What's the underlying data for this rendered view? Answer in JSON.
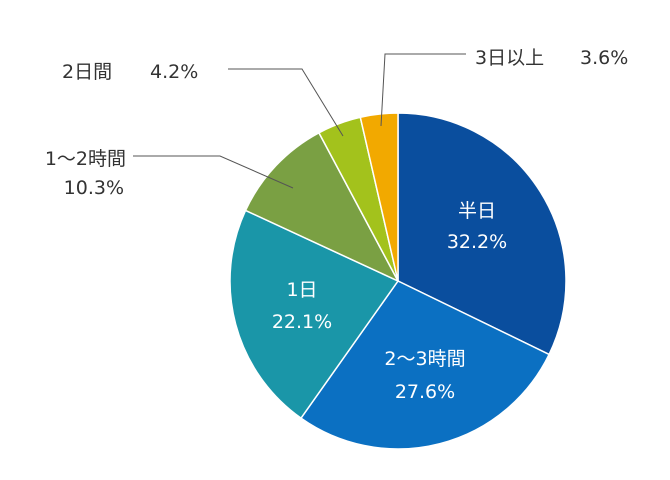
{
  "chart_data": {
    "type": "pie",
    "start": "12 o'clock",
    "direction": "clockwise",
    "slices": [
      {
        "label": "半日",
        "value": 32.2,
        "value_text": "32.2%",
        "color": "#0a4e9e",
        "label_placement": "inside"
      },
      {
        "label": "2～3時間",
        "value": 27.6,
        "value_text": "27.6%",
        "color": "#0b70c2",
        "label_placement": "inside"
      },
      {
        "label": "1日",
        "value": 22.1,
        "value_text": "22.1%",
        "color": "#1a96a8",
        "label_placement": "inside"
      },
      {
        "label": "1～2時間",
        "value": 10.3,
        "value_text": "10.3%",
        "color": "#7aa043",
        "label_placement": "outside"
      },
      {
        "label": "2日間",
        "value": 4.2,
        "value_text": "4.2%",
        "color": "#a3c21c",
        "label_placement": "outside"
      },
      {
        "label": "3日以上",
        "value": 3.6,
        "value_text": "3.6%",
        "color": "#f2a900",
        "label_placement": "outside"
      }
    ]
  }
}
